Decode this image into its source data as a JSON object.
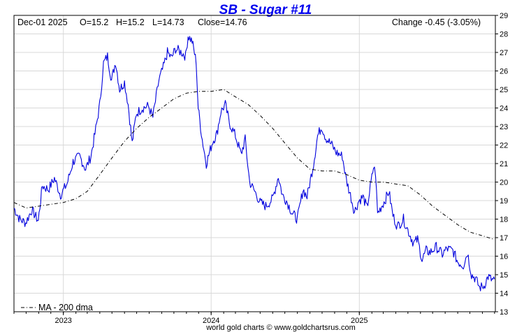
{
  "chart_data": {
    "type": "line",
    "title": "SB  -  Sugar #11",
    "header": {
      "date": "Dec-01  2025",
      "open": "O=15.2",
      "high": "H=15.2",
      "low": "L=14.73",
      "close": "Close=14.76",
      "change": "Change -0.45 (-3.05%)"
    },
    "y_axis": {
      "position": "right",
      "ylim": [
        13,
        29
      ],
      "ticks": [
        13,
        14,
        15,
        16,
        17,
        18,
        19,
        20,
        21,
        22,
        23,
        24,
        25,
        26,
        27,
        28,
        29
      ]
    },
    "x_axis": {
      "range": [
        "2022-09-01",
        "2025-12-03"
      ],
      "ticks": [
        {
          "label": "2023",
          "date": "2023-01-01"
        },
        {
          "label": "2024",
          "date": "2024-01-01"
        },
        {
          "label": "2025",
          "date": "2025-01-01"
        }
      ]
    },
    "grid": true,
    "series": [
      {
        "kind": "price",
        "color": "#0000dd",
        "points": [
          [
            "2022-09-01",
            18.6
          ],
          [
            "2022-09-15",
            18.0
          ],
          [
            "2022-09-30",
            17.8
          ],
          [
            "2022-10-15",
            18.5
          ],
          [
            "2022-10-31",
            17.9
          ],
          [
            "2022-11-10",
            19.8
          ],
          [
            "2022-11-25",
            19.6
          ],
          [
            "2022-12-10",
            20.2
          ],
          [
            "2022-12-25",
            19.3
          ],
          [
            "2023-01-10",
            19.9
          ],
          [
            "2023-01-25",
            21.1
          ],
          [
            "2023-02-10",
            21.4
          ],
          [
            "2023-02-25",
            20.7
          ],
          [
            "2023-03-10",
            21.4
          ],
          [
            "2023-03-20",
            22.6
          ],
          [
            "2023-04-01",
            24.2
          ],
          [
            "2023-04-10",
            26.4
          ],
          [
            "2023-04-20",
            26.8
          ],
          [
            "2023-04-30",
            25.5
          ],
          [
            "2023-05-10",
            26.5
          ],
          [
            "2023-05-20",
            25.0
          ],
          [
            "2023-06-01",
            25.4
          ],
          [
            "2023-06-10",
            24.2
          ],
          [
            "2023-06-20",
            22.1
          ],
          [
            "2023-06-30",
            23.7
          ],
          [
            "2023-07-15",
            24.0
          ],
          [
            "2023-07-30",
            24.1
          ],
          [
            "2023-08-10",
            23.5
          ],
          [
            "2023-08-25",
            25.5
          ],
          [
            "2023-09-05",
            26.2
          ],
          [
            "2023-09-15",
            27.0
          ],
          [
            "2023-09-25",
            26.7
          ],
          [
            "2023-10-05",
            27.2
          ],
          [
            "2023-10-20",
            27.0
          ],
          [
            "2023-10-30",
            26.8
          ],
          [
            "2023-11-05",
            27.9
          ],
          [
            "2023-11-15",
            27.6
          ],
          [
            "2023-11-25",
            26.5
          ],
          [
            "2023-11-30",
            24.0
          ],
          [
            "2023-12-10",
            22.3
          ],
          [
            "2023-12-20",
            21.0
          ],
          [
            "2024-01-05",
            22.2
          ],
          [
            "2024-01-15",
            22.6
          ],
          [
            "2024-01-25",
            23.8
          ],
          [
            "2024-02-05",
            24.2
          ],
          [
            "2024-02-15",
            23.2
          ],
          [
            "2024-03-01",
            22.5
          ],
          [
            "2024-03-15",
            21.5
          ],
          [
            "2024-03-25",
            22.3
          ],
          [
            "2024-04-05",
            20.0
          ],
          [
            "2024-04-20",
            19.4
          ],
          [
            "2024-05-01",
            18.9
          ],
          [
            "2024-05-15",
            18.7
          ],
          [
            "2024-06-01",
            19.1
          ],
          [
            "2024-06-15",
            20.3
          ],
          [
            "2024-06-25",
            19.3
          ],
          [
            "2024-07-05",
            19.0
          ],
          [
            "2024-07-20",
            18.3
          ],
          [
            "2024-08-01",
            18.0
          ],
          [
            "2024-08-15",
            19.6
          ],
          [
            "2024-08-25",
            19.2
          ],
          [
            "2024-09-10",
            21.0
          ],
          [
            "2024-09-20",
            22.5
          ],
          [
            "2024-09-30",
            23.0
          ],
          [
            "2024-10-10",
            22.4
          ],
          [
            "2024-10-25",
            22.0
          ],
          [
            "2024-11-05",
            21.6
          ],
          [
            "2024-11-20",
            21.4
          ],
          [
            "2024-11-30",
            20.1
          ],
          [
            "2024-12-10",
            19.3
          ],
          [
            "2024-12-20",
            18.4
          ],
          [
            "2024-12-31",
            19.0
          ],
          [
            "2025-01-10",
            19.2
          ],
          [
            "2025-01-20",
            18.6
          ],
          [
            "2025-01-28",
            19.7
          ],
          [
            "2025-02-05",
            20.8
          ],
          [
            "2025-02-10",
            20.5
          ],
          [
            "2025-02-15",
            18.3
          ],
          [
            "2025-02-25",
            18.7
          ],
          [
            "2025-03-05",
            19.0
          ],
          [
            "2025-03-15",
            19.5
          ],
          [
            "2025-03-25",
            18.2
          ],
          [
            "2025-04-05",
            17.6
          ],
          [
            "2025-04-20",
            18.0
          ],
          [
            "2025-05-01",
            17.4
          ],
          [
            "2025-05-15",
            16.7
          ],
          [
            "2025-05-25",
            16.9
          ],
          [
            "2025-06-05",
            15.8
          ],
          [
            "2025-06-15",
            16.3
          ],
          [
            "2025-06-25",
            16.2
          ],
          [
            "2025-07-10",
            16.5
          ],
          [
            "2025-07-25",
            16.1
          ],
          [
            "2025-08-05",
            16.4
          ],
          [
            "2025-08-20",
            16.3
          ],
          [
            "2025-09-01",
            15.7
          ],
          [
            "2025-09-15",
            15.5
          ],
          [
            "2025-09-25",
            16.2
          ],
          [
            "2025-10-05",
            15.0
          ],
          [
            "2025-10-15",
            14.8
          ],
          [
            "2025-10-25",
            14.3
          ],
          [
            "2025-11-05",
            14.4
          ],
          [
            "2025-11-15",
            14.9
          ],
          [
            "2025-11-25",
            14.7
          ],
          [
            "2025-12-01",
            14.76
          ]
        ]
      },
      {
        "kind": "moving-average",
        "color": "#000000",
        "points": [
          [
            "2022-09-01",
            18.9
          ],
          [
            "2022-10-01",
            18.6
          ],
          [
            "2022-11-01",
            18.7
          ],
          [
            "2022-12-01",
            18.8
          ],
          [
            "2023-01-01",
            18.9
          ],
          [
            "2023-02-01",
            19.1
          ],
          [
            "2023-03-01",
            19.5
          ],
          [
            "2023-04-01",
            20.4
          ],
          [
            "2023-05-01",
            21.3
          ],
          [
            "2023-06-01",
            22.2
          ],
          [
            "2023-07-01",
            22.9
          ],
          [
            "2023-08-01",
            23.5
          ],
          [
            "2023-09-01",
            24.0
          ],
          [
            "2023-10-01",
            24.5
          ],
          [
            "2023-11-01",
            24.8
          ],
          [
            "2023-12-01",
            24.9
          ],
          [
            "2024-01-01",
            24.9
          ],
          [
            "2024-02-01",
            25.0
          ],
          [
            "2024-03-01",
            24.6
          ],
          [
            "2024-04-01",
            24.2
          ],
          [
            "2024-05-01",
            23.6
          ],
          [
            "2024-06-01",
            22.9
          ],
          [
            "2024-07-01",
            22.1
          ],
          [
            "2024-08-01",
            21.3
          ],
          [
            "2024-09-01",
            20.7
          ],
          [
            "2024-10-01",
            20.6
          ],
          [
            "2024-11-01",
            20.6
          ],
          [
            "2024-12-01",
            20.4
          ],
          [
            "2025-01-01",
            20.1
          ],
          [
            "2025-02-01",
            20.0
          ],
          [
            "2025-03-01",
            20.0
          ],
          [
            "2025-04-01",
            19.9
          ],
          [
            "2025-05-01",
            19.8
          ],
          [
            "2025-06-01",
            19.3
          ],
          [
            "2025-07-01",
            18.7
          ],
          [
            "2025-08-01",
            18.2
          ],
          [
            "2025-09-01",
            17.7
          ],
          [
            "2025-10-01",
            17.3
          ],
          [
            "2025-11-01",
            17.1
          ],
          [
            "2025-12-01",
            16.9
          ]
        ]
      }
    ],
    "legend": {
      "text": "MA - 200 dma",
      "placement": "bottom-left"
    },
    "credit": "world gold charts © www.goldchartsrus.com"
  },
  "colors": {
    "title": "#0000ee",
    "price_line": "#0000dd",
    "ma_line": "#000000",
    "grid": "#d8d8d8",
    "frame": "#000000"
  }
}
